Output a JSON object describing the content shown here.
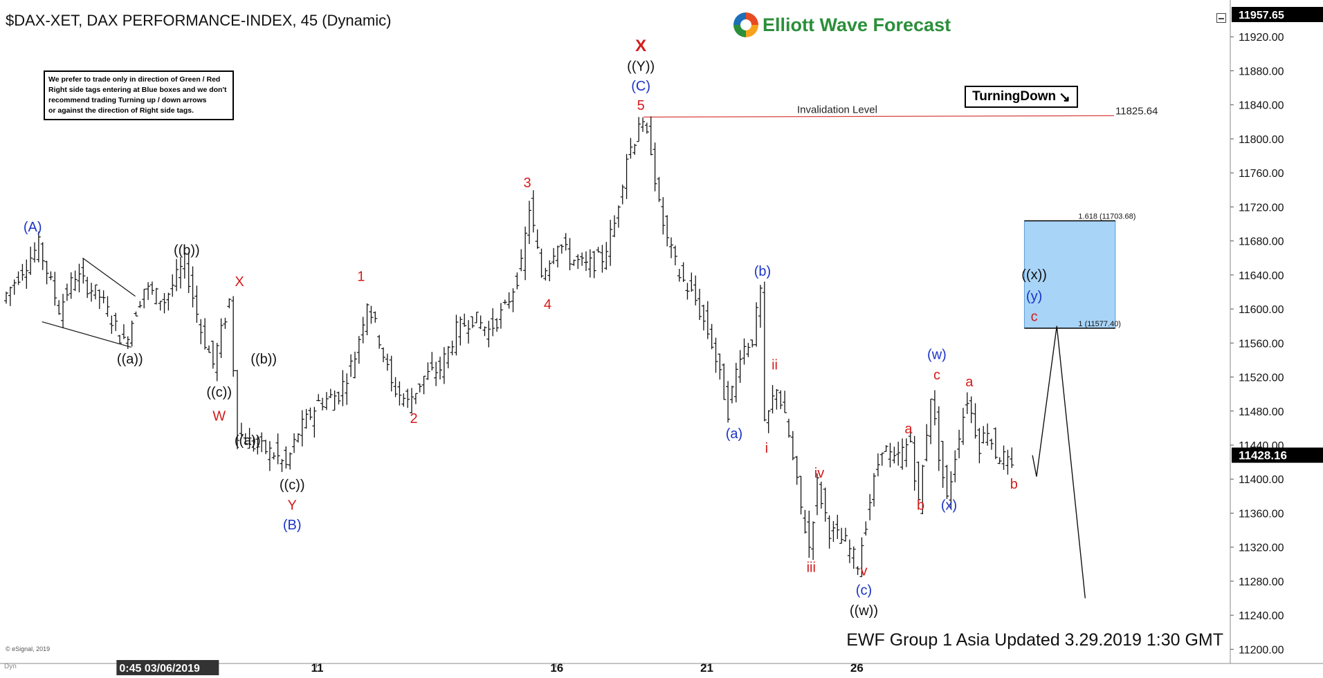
{
  "chart_header": {
    "title": "$DAX-XET, DAX PERFORMANCE-INDEX, 45 (Dynamic)",
    "logo_text": "Elliott Wave Forecast",
    "turning_label": "TurningDown",
    "turning_icon": "down-right-arrow-icon",
    "footer": "EWF Group 1 Asia Updated 3.29.2019 1:30 GMT",
    "copyright": "© eSignal, 2019",
    "dyn_label": "Dyn"
  },
  "note": {
    "lines": [
      "We prefer to trade only in direction of Green / Red",
      "Right side tags entering at Blue boxes and we don't",
      "recommend trading Turning up / down arrows",
      "or against the direction of Right side tags."
    ]
  },
  "colors": {
    "price_bars": "#111111",
    "red_label": "#d41a1a",
    "blue_label": "#1a33c8",
    "black_label": "#111111",
    "invalidation_line": "#d94040",
    "blue_box": "#a8d4f7",
    "current_price_bg": "#000000"
  },
  "chart_data": {
    "type": "line",
    "ylim": [
      11180,
      11960
    ],
    "y_ticks": [
      11200,
      11240,
      11280,
      11320,
      11360,
      11400,
      11440,
      11480,
      11520,
      11560,
      11600,
      11640,
      11680,
      11720,
      11760,
      11800,
      11840,
      11880,
      11920
    ],
    "y_tick_labels": [
      "11200.00",
      "11240.00",
      "11280.00",
      "11320.00",
      "11360.00",
      "11400.00",
      "11440.00",
      "11480.00",
      "11520.00",
      "11560.00",
      "11600.00",
      "11640.00",
      "11680.00",
      "11720.00",
      "11760.00",
      "11800.00",
      "11840.00",
      "11880.00",
      "11920.00"
    ],
    "top_price_label": "11957.65",
    "current_price": 11428.16,
    "current_price_label": "11428.16",
    "x_range": [
      0,
      302
    ],
    "x_ticks": [
      {
        "x": 26,
        "label": "0:45 03/06/2019",
        "highlight": true
      },
      {
        "x": 75,
        "label": "11",
        "highlight": false
      },
      {
        "x": 134,
        "label": "16",
        "highlight": false
      },
      {
        "x": 171,
        "label": "21",
        "highlight": false
      },
      {
        "x": 208,
        "label": "26",
        "highlight": false
      }
    ],
    "invalidation": {
      "value": 11825.64,
      "label": "Invalidation Level",
      "value_label": "11825.64",
      "x_start": 157,
      "x_end": 252
    },
    "blue_box": {
      "x_start": 247,
      "x_end": 273,
      "top": 11703.68,
      "bottom": 11577.4,
      "upper_label": "1.618 (11703.68)",
      "lower_label": "1 (11577.40)"
    },
    "price_path": [
      [
        0,
        11610
      ],
      [
        4,
        11640
      ],
      [
        9,
        11675
      ],
      [
        14,
        11600
      ],
      [
        18,
        11640
      ],
      [
        24,
        11615
      ],
      [
        30,
        11560
      ],
      [
        35,
        11625
      ],
      [
        40,
        11610
      ],
      [
        45,
        11655
      ],
      [
        49,
        11575
      ],
      [
        52,
        11535
      ],
      [
        56,
        11610
      ],
      [
        58,
        11455
      ],
      [
        62,
        11440
      ],
      [
        67,
        11430
      ],
      [
        70,
        11415
      ],
      [
        73,
        11455
      ],
      [
        78,
        11490
      ],
      [
        83,
        11500
      ],
      [
        87,
        11545
      ],
      [
        90,
        11610
      ],
      [
        93,
        11565
      ],
      [
        96,
        11510
      ],
      [
        100,
        11490
      ],
      [
        104,
        11520
      ],
      [
        108,
        11530
      ],
      [
        112,
        11575
      ],
      [
        116,
        11590
      ],
      [
        120,
        11575
      ],
      [
        124,
        11600
      ],
      [
        128,
        11650
      ],
      [
        130,
        11720
      ],
      [
        133,
        11640
      ],
      [
        137,
        11680
      ],
      [
        140,
        11660
      ],
      [
        144,
        11650
      ],
      [
        148,
        11660
      ],
      [
        151,
        11700
      ],
      [
        154,
        11780
      ],
      [
        156,
        11800
      ],
      [
        157,
        11822
      ],
      [
        160,
        11790
      ],
      [
        162,
        11720
      ],
      [
        164,
        11680
      ],
      [
        167,
        11640
      ],
      [
        171,
        11610
      ],
      [
        175,
        11560
      ],
      [
        179,
        11480
      ],
      [
        182,
        11550
      ],
      [
        185,
        11565
      ],
      [
        187,
        11620
      ],
      [
        188,
        11460
      ],
      [
        191,
        11510
      ],
      [
        194,
        11450
      ],
      [
        197,
        11365
      ],
      [
        199,
        11320
      ],
      [
        201,
        11395
      ],
      [
        204,
        11340
      ],
      [
        208,
        11325
      ],
      [
        211,
        11300
      ],
      [
        214,
        11375
      ],
      [
        217,
        11440
      ],
      [
        220,
        11420
      ],
      [
        224,
        11445
      ],
      [
        226,
        11370
      ],
      [
        229,
        11500
      ],
      [
        231,
        11430
      ],
      [
        233,
        11375
      ],
      [
        236,
        11455
      ],
      [
        238,
        11495
      ],
      [
        241,
        11440
      ],
      [
        243,
        11460
      ],
      [
        245,
        11430
      ],
      [
        247,
        11425
      ],
      [
        249,
        11410
      ]
    ],
    "projection_path": [
      [
        249,
        11428
      ],
      [
        250,
        11403
      ],
      [
        255,
        11580
      ],
      [
        262,
        11260
      ]
    ],
    "trendlines": [
      [
        [
          9,
          11585
        ],
        [
          31,
          11555
        ]
      ],
      [
        [
          19,
          11660
        ],
        [
          32,
          11615
        ]
      ]
    ],
    "wave_labels": [
      {
        "text": "(A)",
        "x": 6,
        "v": 11691,
        "color": "blue"
      },
      {
        "text": "((b))",
        "x": 44,
        "v": 11664,
        "color": "black"
      },
      {
        "text": "((a))",
        "x": 30,
        "v": 11536,
        "color": "black"
      },
      {
        "text": "X",
        "x": 57,
        "v": 11627,
        "color": "red"
      },
      {
        "text": "((b))",
        "x": 63,
        "v": 11536,
        "color": "black"
      },
      {
        "text": "((c))",
        "x": 52,
        "v": 11497,
        "color": "black"
      },
      {
        "text": "W",
        "x": 52,
        "v": 11469,
        "color": "red"
      },
      {
        "text": "((a))",
        "x": 59,
        "v": 11440,
        "color": "black"
      },
      {
        "text": "((c))",
        "x": 70,
        "v": 11388,
        "color": "black"
      },
      {
        "text": "Y",
        "x": 70,
        "v": 11364,
        "color": "red"
      },
      {
        "text": "(B)",
        "x": 70,
        "v": 11341,
        "color": "blue"
      },
      {
        "text": "1",
        "x": 87,
        "v": 11633,
        "color": "red"
      },
      {
        "text": "2",
        "x": 100,
        "v": 11466,
        "color": "red"
      },
      {
        "text": "3",
        "x": 128,
        "v": 11743,
        "color": "red"
      },
      {
        "text": "4",
        "x": 133,
        "v": 11600,
        "color": "red"
      },
      {
        "text": "X",
        "x": 156,
        "v": 11903,
        "color": "red"
      },
      {
        "text": "((Y))",
        "x": 156,
        "v": 11880,
        "color": "black"
      },
      {
        "text": "(C)",
        "x": 156,
        "v": 11857,
        "color": "blue"
      },
      {
        "text": "5",
        "x": 156,
        "v": 11834,
        "color": "red"
      },
      {
        "text": "(b)",
        "x": 186,
        "v": 11639,
        "color": "blue"
      },
      {
        "text": "(a)",
        "x": 179,
        "v": 11448,
        "color": "blue"
      },
      {
        "text": "ii",
        "x": 189,
        "v": 11529,
        "color": "red"
      },
      {
        "text": "i",
        "x": 187,
        "v": 11431,
        "color": "red"
      },
      {
        "text": "iv",
        "x": 200,
        "v": 11402,
        "color": "red"
      },
      {
        "text": "iii",
        "x": 198,
        "v": 11291,
        "color": "red"
      },
      {
        "text": "v",
        "x": 211,
        "v": 11287,
        "color": "red"
      },
      {
        "text": "(c)",
        "x": 211,
        "v": 11264,
        "color": "blue"
      },
      {
        "text": "((w))",
        "x": 211,
        "v": 11240,
        "color": "black"
      },
      {
        "text": "a",
        "x": 222,
        "v": 11454,
        "color": "red"
      },
      {
        "text": "b",
        "x": 225,
        "v": 11364,
        "color": "red"
      },
      {
        "text": "(w)",
        "x": 229,
        "v": 11541,
        "color": "blue"
      },
      {
        "text": "c",
        "x": 229,
        "v": 11517,
        "color": "red"
      },
      {
        "text": "(x)",
        "x": 232,
        "v": 11364,
        "color": "blue"
      },
      {
        "text": "a",
        "x": 237,
        "v": 11509,
        "color": "red"
      },
      {
        "text": "b",
        "x": 248,
        "v": 11389,
        "color": "red"
      },
      {
        "text": "((x))",
        "x": 253,
        "v": 11635,
        "color": "black"
      },
      {
        "text": "(y)",
        "x": 253,
        "v": 11610,
        "color": "blue"
      },
      {
        "text": "c",
        "x": 253,
        "v": 11586,
        "color": "red"
      }
    ]
  }
}
